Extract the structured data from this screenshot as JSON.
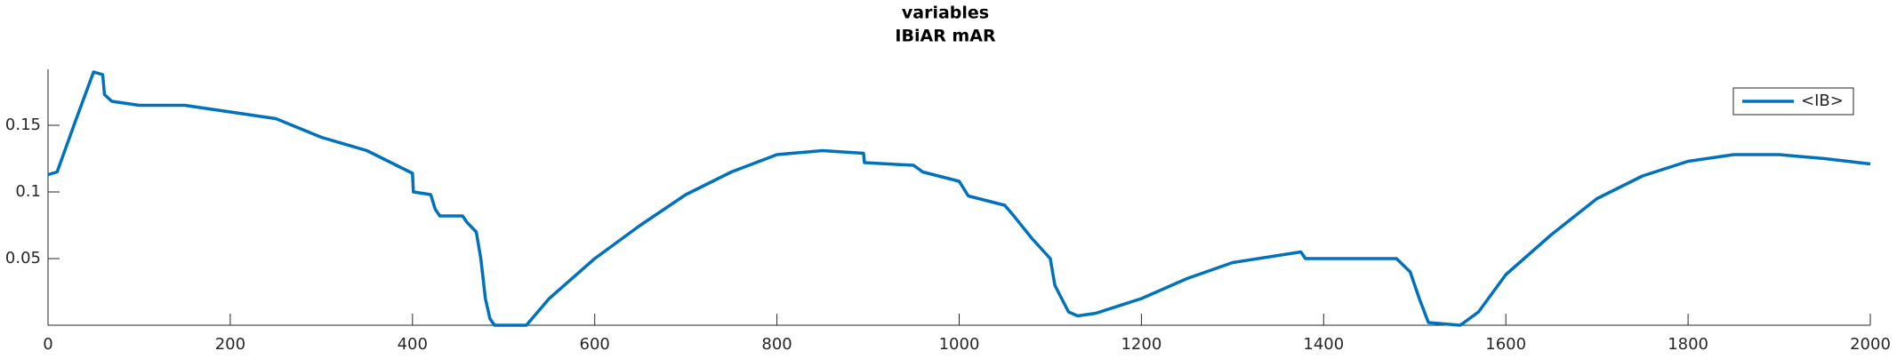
{
  "chart_data": {
    "type": "line",
    "title": "variables",
    "subtitle": "IBiAR mAR",
    "x": [
      0,
      10,
      30,
      50,
      60,
      62,
      70,
      100,
      150,
      200,
      250,
      300,
      350,
      400,
      401,
      420,
      425,
      430,
      455,
      460,
      470,
      475,
      480,
      485,
      490,
      525,
      550,
      600,
      650,
      700,
      750,
      800,
      850,
      895,
      896,
      950,
      960,
      1000,
      1010,
      1050,
      1060,
      1080,
      1100,
      1105,
      1120,
      1130,
      1150,
      1200,
      1250,
      1300,
      1375,
      1380,
      1400,
      1450,
      1480,
      1495,
      1505,
      1515,
      1550,
      1570,
      1600,
      1650,
      1700,
      1750,
      1800,
      1850,
      1900,
      1950,
      2000
    ],
    "series": [
      {
        "name": "<IB>",
        "color": "#0072bd",
        "values": [
          0.113,
          0.115,
          0.153,
          0.19,
          0.188,
          0.173,
          0.168,
          0.165,
          0.165,
          0.16,
          0.155,
          0.141,
          0.131,
          0.114,
          0.1,
          0.098,
          0.087,
          0.082,
          0.082,
          0.077,
          0.07,
          0.05,
          0.02,
          0.005,
          0,
          0,
          0.02,
          0.05,
          0.075,
          0.098,
          0.115,
          0.128,
          0.131,
          0.129,
          0.122,
          0.12,
          0.115,
          0.108,
          0.097,
          0.09,
          0.082,
          0.065,
          0.05,
          0.03,
          0.01,
          0.007,
          0.009,
          0.02,
          0.035,
          0.047,
          0.055,
          0.05,
          0.05,
          0.05,
          0.05,
          0.04,
          0.02,
          0.002,
          0,
          0.01,
          0.038,
          0.068,
          0.095,
          0.112,
          0.123,
          0.128,
          0.128,
          0.125,
          0.121
        ]
      }
    ],
    "xlim": [
      0,
      2000
    ],
    "xticks": [
      0,
      200,
      400,
      600,
      800,
      1000,
      1200,
      1400,
      1600,
      1800,
      2000
    ],
    "ylim": [
      0,
      0.192
    ],
    "yticks": [
      0.05,
      0.1,
      0.15
    ],
    "grid": false,
    "legend": "upper-right"
  }
}
